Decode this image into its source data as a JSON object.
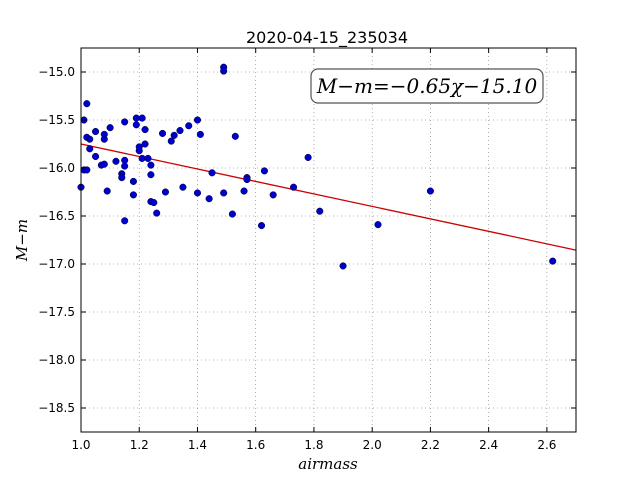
{
  "chart_data": {
    "type": "scatter",
    "title": "2020-04-15_235034",
    "xlabel": "airmass",
    "ylabel": "M−m",
    "annotation": "M−m=−0.65χ−15.10",
    "xlim": [
      1.0,
      2.7
    ],
    "ylim": [
      -18.75,
      -14.75
    ],
    "y_inverted": false,
    "grid": true,
    "xticks": [
      1.0,
      1.2,
      1.4,
      1.6,
      1.8,
      2.0,
      2.2,
      2.4,
      2.6
    ],
    "xtick_labels": [
      "1.0",
      "1.2",
      "1.4",
      "1.6",
      "1.8",
      "2.0",
      "2.2",
      "2.4",
      "2.6"
    ],
    "yticks": [
      -15.0,
      -15.5,
      -16.0,
      -16.5,
      -17.0,
      -17.5,
      -18.0,
      -18.5
    ],
    "ytick_labels": [
      "−15.0",
      "−15.5",
      "−16.0",
      "−16.5",
      "−17.0",
      "−17.5",
      "−18.0",
      "−18.5"
    ],
    "point_color": "#0000cc",
    "fit_color": "#cc0000",
    "fit": {
      "slope": -0.65,
      "intercept": -15.1
    },
    "points": [
      [
        1.0,
        -16.2
      ],
      [
        1.01,
        -16.02
      ],
      [
        1.01,
        -15.5
      ],
      [
        1.02,
        -15.68
      ],
      [
        1.02,
        -15.33
      ],
      [
        1.02,
        -16.02
      ],
      [
        1.03,
        -15.7
      ],
      [
        1.03,
        -15.8
      ],
      [
        1.05,
        -15.62
      ],
      [
        1.05,
        -15.88
      ],
      [
        1.07,
        -15.97
      ],
      [
        1.08,
        -15.96
      ],
      [
        1.08,
        -15.65
      ],
      [
        1.08,
        -15.7
      ],
      [
        1.09,
        -16.24
      ],
      [
        1.1,
        -15.58
      ],
      [
        1.12,
        -15.93
      ],
      [
        1.14,
        -16.06
      ],
      [
        1.14,
        -16.1
      ],
      [
        1.15,
        -15.98
      ],
      [
        1.15,
        -15.92
      ],
      [
        1.15,
        -16.55
      ],
      [
        1.15,
        -15.52
      ],
      [
        1.18,
        -16.14
      ],
      [
        1.18,
        -16.28
      ],
      [
        1.19,
        -15.48
      ],
      [
        1.19,
        -15.55
      ],
      [
        1.2,
        -15.78
      ],
      [
        1.2,
        -15.82
      ],
      [
        1.21,
        -15.48
      ],
      [
        1.21,
        -15.9
      ],
      [
        1.22,
        -15.6
      ],
      [
        1.22,
        -15.75
      ],
      [
        1.23,
        -15.9
      ],
      [
        1.24,
        -15.97
      ],
      [
        1.24,
        -16.07
      ],
      [
        1.24,
        -16.35
      ],
      [
        1.25,
        -16.36
      ],
      [
        1.26,
        -16.47
      ],
      [
        1.28,
        -15.64
      ],
      [
        1.29,
        -16.25
      ],
      [
        1.31,
        -15.72
      ],
      [
        1.32,
        -15.66
      ],
      [
        1.34,
        -15.61
      ],
      [
        1.35,
        -16.2
      ],
      [
        1.37,
        -15.56
      ],
      [
        1.4,
        -15.5
      ],
      [
        1.4,
        -16.26
      ],
      [
        1.41,
        -15.65
      ],
      [
        1.44,
        -16.32
      ],
      [
        1.45,
        -16.05
      ],
      [
        1.49,
        -14.95
      ],
      [
        1.49,
        -14.99
      ],
      [
        1.49,
        -16.26
      ],
      [
        1.52,
        -16.48
      ],
      [
        1.53,
        -15.67
      ],
      [
        1.56,
        -16.24
      ],
      [
        1.57,
        -16.1
      ],
      [
        1.57,
        -16.12
      ],
      [
        1.62,
        -16.6
      ],
      [
        1.63,
        -16.03
      ],
      [
        1.66,
        -16.28
      ],
      [
        1.73,
        -16.2
      ],
      [
        1.78,
        -15.89
      ],
      [
        1.82,
        -16.45
      ],
      [
        1.9,
        -17.02
      ],
      [
        2.02,
        -16.59
      ],
      [
        2.2,
        -16.24
      ],
      [
        2.62,
        -16.97
      ]
    ]
  }
}
